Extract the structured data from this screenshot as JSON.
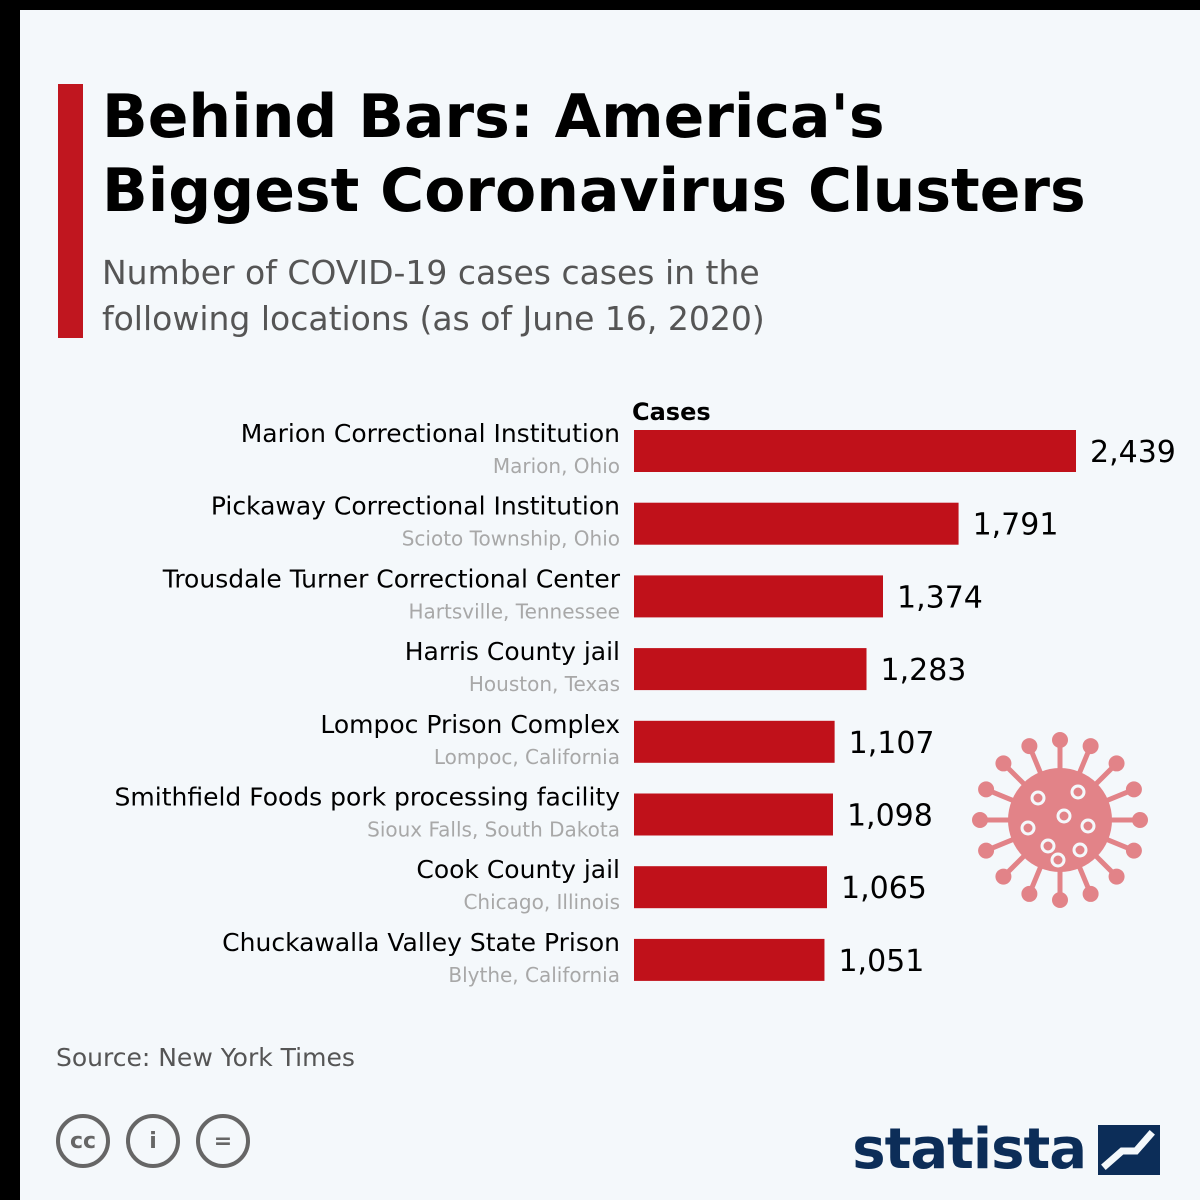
{
  "header": {
    "title_line1": "Behind Bars: America's",
    "title_line2": "Biggest Coronavirus Clusters",
    "subtitle_line1": "Number of COVID-19 cases cases in the",
    "subtitle_line2": "following locations (as of June 16, 2020)"
  },
  "colors": {
    "accent": "#c0161f",
    "bar": "#c0111a",
    "virus": "#e28388",
    "brand": "#0c2d58"
  },
  "chart_data": {
    "type": "bar",
    "orientation": "horizontal",
    "value_axis_label": "Cases",
    "categories": [
      "Marion Correctional Institution",
      "Pickaway Correctional Institution",
      "Trousdale Turner Correctional Center",
      "Harris County jail",
      "Lompoc Prison Complex",
      "Smithfield Foods pork processing facility",
      "Cook County jail",
      "Chuckawalla Valley State Prison"
    ],
    "locations": [
      "Marion, Ohio",
      "Scioto Township, Ohio",
      "Hartsville, Tennessee",
      "Houston, Texas",
      "Lompoc, California",
      "Sioux Falls, South Dakota",
      "Chicago, Illinois",
      "Blythe, California"
    ],
    "values": [
      2439,
      1791,
      1374,
      1283,
      1107,
      1098,
      1065,
      1051
    ],
    "value_labels": [
      "2,439",
      "1,791",
      "1,374",
      "1,283",
      "1,107",
      "1,098",
      "1,065",
      "1,051"
    ],
    "xlim": [
      0,
      2439
    ],
    "grid": false,
    "legend": "none"
  },
  "footer": {
    "source": "Source: New York Times",
    "license_icons": [
      "cc-icon",
      "by-icon",
      "nd-icon"
    ],
    "license_glyphs": [
      "cc",
      "i",
      "="
    ],
    "brand": "statista"
  }
}
